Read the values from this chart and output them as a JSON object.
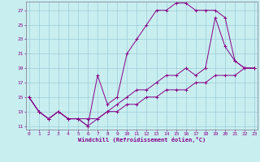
{
  "xlabel": "Windchill (Refroidissement éolien,°C)",
  "bg_color": "#c8eef0",
  "grid_color": "#9dccd8",
  "line_color": "#880088",
  "spine_color": "#888899",
  "xlim": [
    -0.3,
    23.3
  ],
  "ylim": [
    10.5,
    28.2
  ],
  "yticks": [
    11,
    13,
    15,
    17,
    19,
    21,
    23,
    25,
    27
  ],
  "xticks": [
    0,
    1,
    2,
    3,
    4,
    5,
    6,
    7,
    8,
    9,
    10,
    11,
    12,
    13,
    14,
    15,
    16,
    17,
    18,
    19,
    20,
    21,
    22,
    23
  ],
  "line1_x": [
    0,
    1,
    2,
    3,
    4,
    5,
    6,
    7,
    8,
    9,
    10,
    11,
    12,
    13,
    14,
    15,
    16,
    17,
    18,
    19,
    20,
    21,
    22,
    23
  ],
  "line1_y": [
    15,
    13,
    12,
    13,
    12,
    12,
    11,
    18,
    14,
    15,
    21,
    23,
    25,
    27,
    27,
    28,
    28,
    27,
    27,
    27,
    26,
    20,
    19,
    19
  ],
  "line2_x": [
    0,
    1,
    2,
    3,
    4,
    5,
    6,
    7,
    8,
    9,
    10,
    11,
    12,
    13,
    14,
    15,
    16,
    17,
    18,
    19,
    20,
    21,
    22,
    23
  ],
  "line2_y": [
    15,
    13,
    12,
    13,
    12,
    12,
    11,
    12,
    13,
    14,
    15,
    16,
    16,
    17,
    18,
    18,
    19,
    18,
    19,
    26,
    22,
    20,
    19,
    19
  ],
  "line3_x": [
    0,
    1,
    2,
    3,
    4,
    5,
    6,
    7,
    8,
    9,
    10,
    11,
    12,
    13,
    14,
    15,
    16,
    17,
    18,
    19,
    20,
    21,
    22,
    23
  ],
  "line3_y": [
    15,
    13,
    12,
    13,
    12,
    12,
    12,
    12,
    13,
    13,
    14,
    14,
    15,
    15,
    16,
    16,
    16,
    17,
    17,
    18,
    18,
    18,
    19,
    19
  ]
}
